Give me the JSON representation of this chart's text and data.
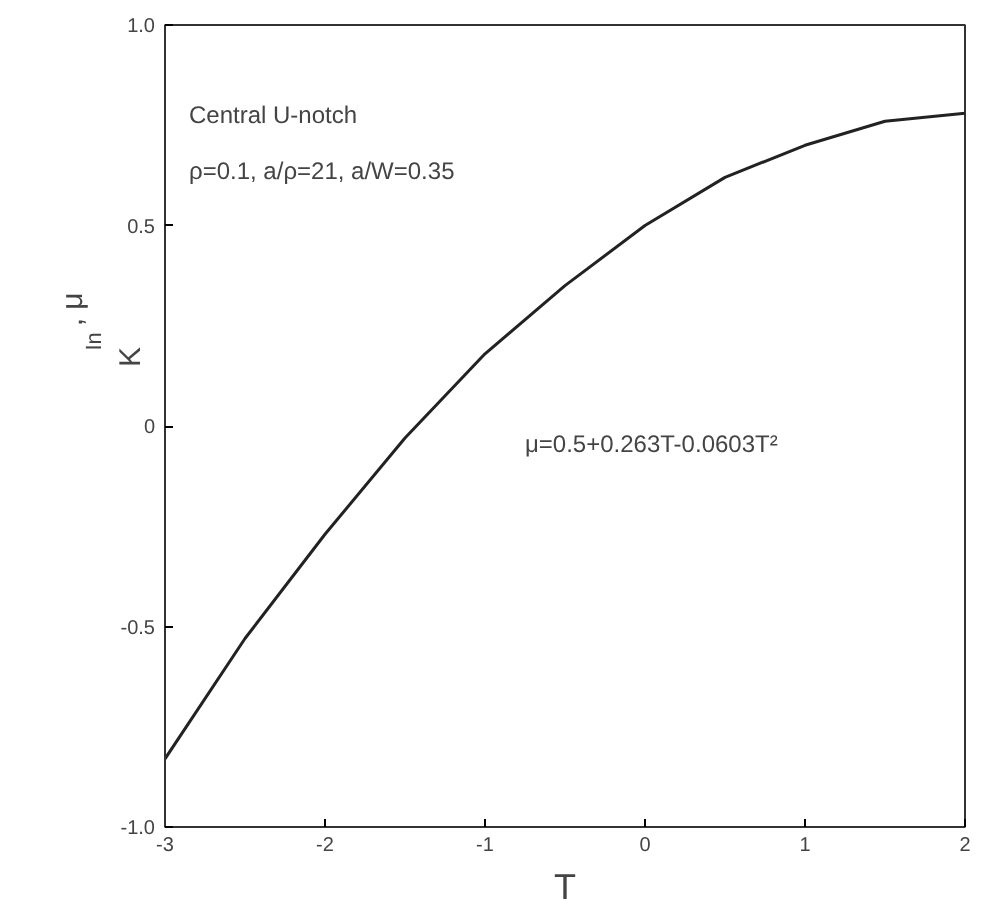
{
  "chart_data": {
    "type": "line",
    "xlabel": "T",
    "ylabel": "K$_{In}$, μ",
    "annotations": [
      "Central U-notch",
      "ρ=0.1, a/ρ=21, a/W=0.35",
      "μ=0.5+0.263T-0.0603T²"
    ],
    "x": [
      -3,
      -2.5,
      -2,
      -1.5,
      -1,
      -0.5,
      0,
      0.5,
      1,
      1.5,
      2
    ],
    "series": [
      {
        "color": "#222222",
        "values": [
          -0.83,
          -0.53,
          -0.27,
          -0.03,
          0.18,
          0.35,
          0.5,
          0.62,
          0.7,
          0.76,
          0.78
        ]
      }
    ],
    "xlim": [
      -3,
      2
    ],
    "ylim": [
      -1.0,
      1.0
    ],
    "xticks": [
      -3,
      -2,
      -1,
      0,
      1,
      2
    ],
    "yticks": [
      {
        "value": -1.0,
        "label": "-1.0"
      },
      {
        "value": -0.5,
        "label": "-0.5"
      },
      0,
      {
        "value": 0.5,
        "label": "0.5"
      },
      {
        "value": 1.0,
        "label": "1.0"
      }
    ],
    "grid": false,
    "marker": "none",
    "line_style": "solid"
  }
}
